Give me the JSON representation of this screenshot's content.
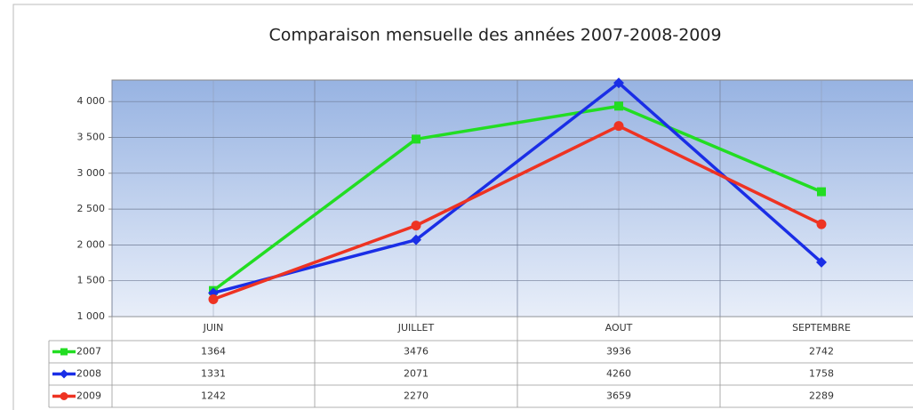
{
  "chart_data": {
    "type": "line",
    "title": "Comparaison mensuelle des années 2007-2008-2009",
    "categories": [
      "JUIN",
      "JUILLET",
      "AOUT",
      "SEPTEMBRE"
    ],
    "series": [
      {
        "name": "2007",
        "color": "#22dd22",
        "marker": "square",
        "values": [
          1364,
          3476,
          3936,
          2742
        ]
      },
      {
        "name": "2008",
        "color": "#1a2ee6",
        "marker": "diamond",
        "values": [
          1331,
          2071,
          4260,
          1758
        ]
      },
      {
        "name": "2009",
        "color": "#ee3322",
        "marker": "circle",
        "values": [
          1242,
          2270,
          3659,
          2289
        ]
      }
    ],
    "ylim": [
      1000,
      4300
    ],
    "yticks": [
      {
        "value": 1000,
        "label": "1 000"
      },
      {
        "value": 1500,
        "label": "1 500"
      },
      {
        "value": 2000,
        "label": "2 000"
      },
      {
        "value": 2500,
        "label": "2 500"
      },
      {
        "value": 3000,
        "label": "3 000"
      },
      {
        "value": 3500,
        "label": "3 500"
      },
      {
        "value": 4000,
        "label": "4 000"
      }
    ],
    "grid": true,
    "data_table": true
  }
}
